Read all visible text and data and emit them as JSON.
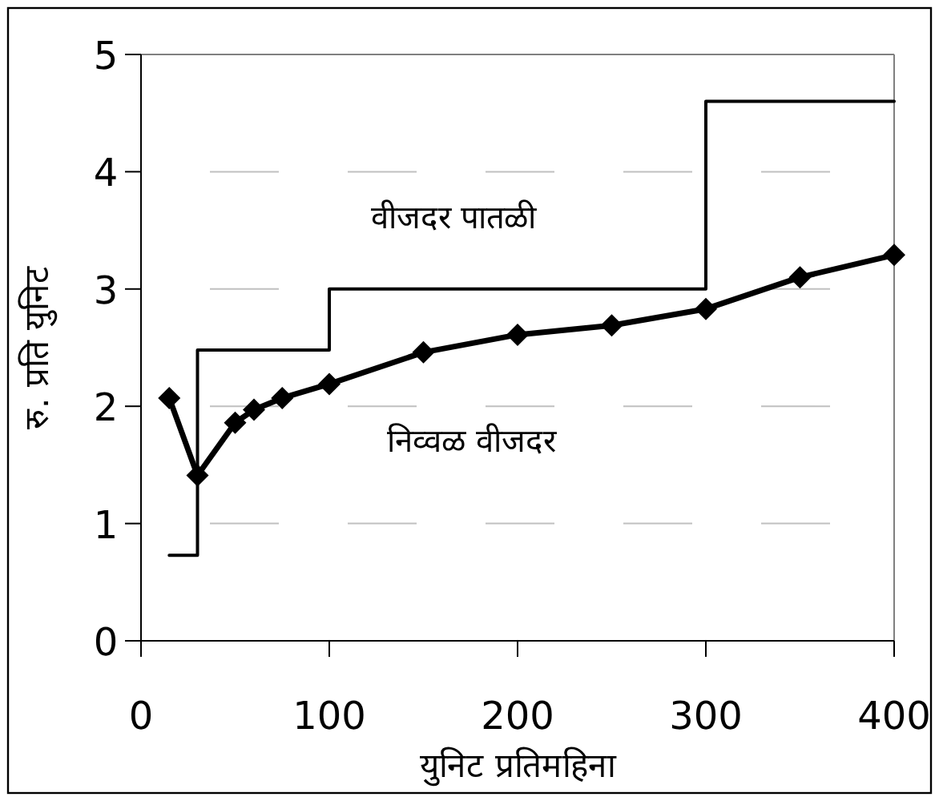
{
  "chart_data": {
    "type": "line",
    "xlabel": "युनिट प्रतिमहिना",
    "ylabel": "रु. प्रति युनिट",
    "xlim": [
      0,
      400
    ],
    "ylim": [
      0,
      5
    ],
    "xticks": [
      0,
      100,
      200,
      300,
      400
    ],
    "yticks": [
      0,
      1,
      2,
      3,
      4,
      5
    ],
    "grid": "y",
    "legend": false,
    "series": [
      {
        "name": "वीजदर पातळी",
        "type": "step",
        "color": "#000000",
        "marker": "none",
        "x": [
          15,
          30,
          100,
          300,
          400
        ],
        "values": [
          0.73,
          2.48,
          3.0,
          4.6,
          4.6
        ]
      },
      {
        "name": "निव्वळ वीजदर",
        "color": "#000000",
        "marker": "diamond",
        "x": [
          15,
          30,
          50,
          60,
          75,
          100,
          150,
          200,
          250,
          300,
          350,
          400
        ],
        "values": [
          2.07,
          1.41,
          1.86,
          1.97,
          2.07,
          2.19,
          2.46,
          2.61,
          2.69,
          2.83,
          3.1,
          3.29
        ]
      }
    ]
  }
}
